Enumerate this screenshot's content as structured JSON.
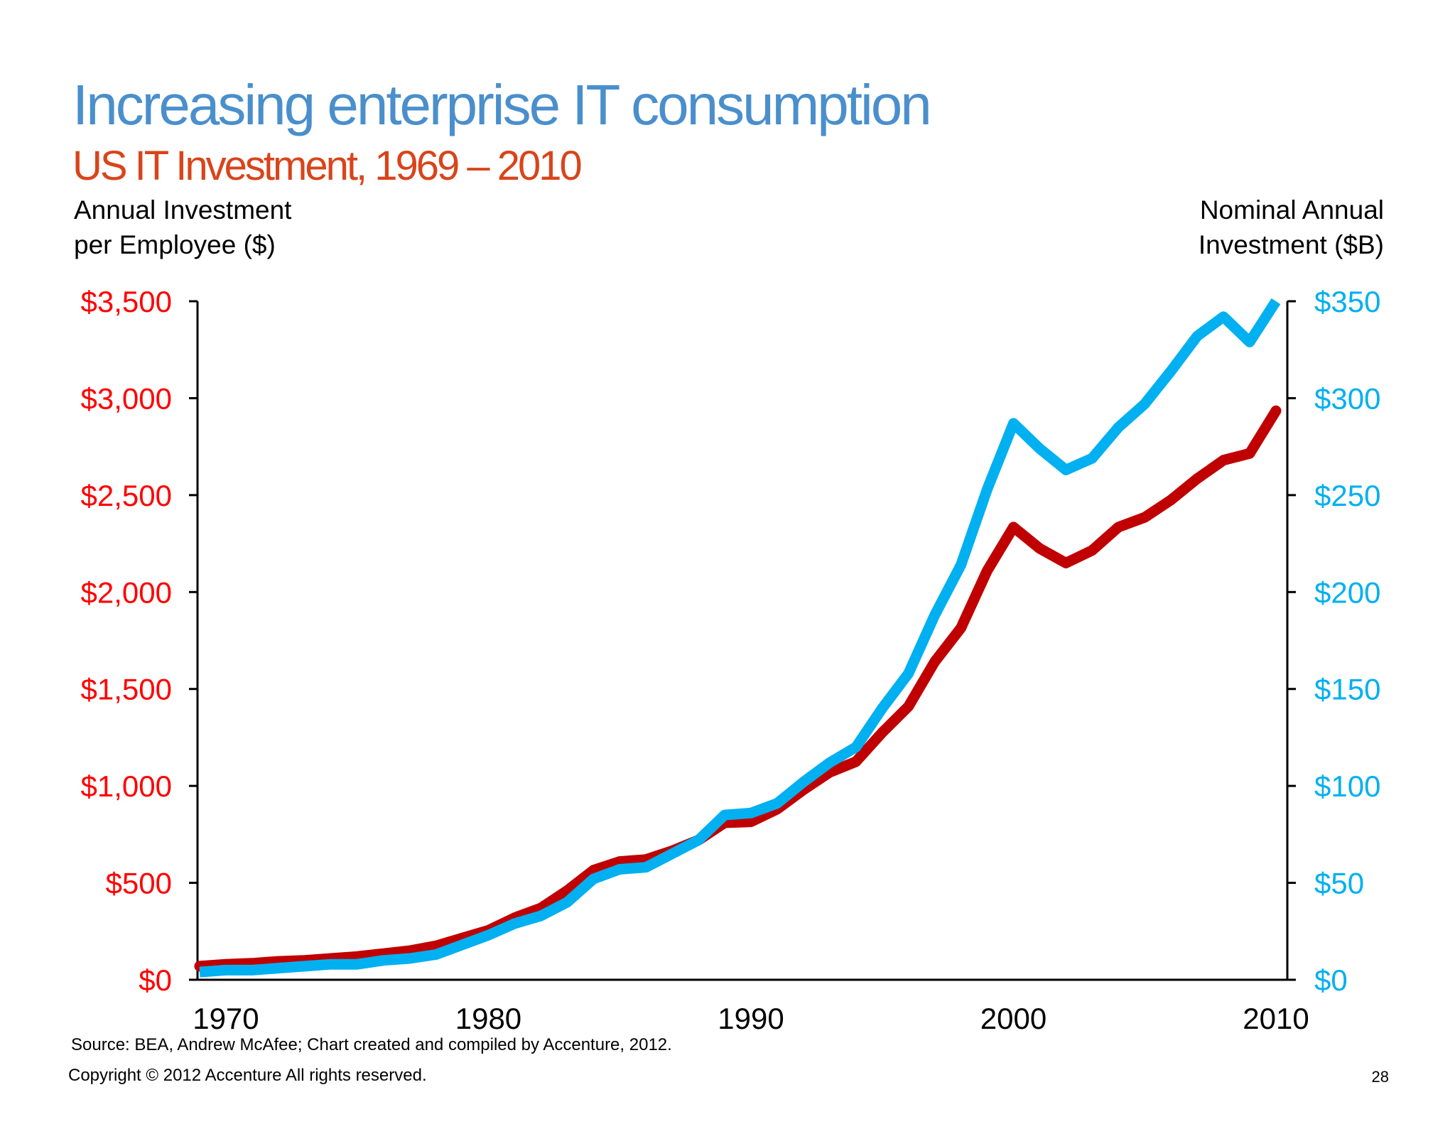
{
  "title": "Increasing enterprise IT consumption",
  "subtitle": "US IT Investment, 1969 – 2010",
  "source": "Source: BEA, Andrew McAfee; Chart created and compiled by Accenture, 2012.",
  "copyright": "Copyright © 2012 Accenture  All rights reserved.",
  "page_number": "28",
  "colors": {
    "title": "#4A8FCC",
    "subtitle": "#D9441A",
    "red_series": "#C00000",
    "blue_series": "#00B0F0",
    "left_ticks": "#FF0000",
    "right_ticks": "#00B0F0"
  },
  "chart_data": {
    "type": "line",
    "ylabel_left": [
      "Annual Investment",
      "per Employee ($)"
    ],
    "ylabel_right": [
      "Nominal Annual",
      "Investment ($B)"
    ],
    "xlim": [
      1969,
      2010
    ],
    "ylim_left": [
      0,
      3500
    ],
    "ylim_right": [
      0,
      350
    ],
    "x_ticks": [
      "1970",
      "1980",
      "1990",
      "2000",
      "2010"
    ],
    "x_tick_values": [
      1970,
      1980,
      1990,
      2000,
      2010
    ],
    "left_ticks": [
      "$0",
      "$500",
      "$1,000",
      "$1,500",
      "$2,000",
      "$2,500",
      "$3,000",
      "$3,500"
    ],
    "right_ticks": [
      "$0",
      "$50",
      "$100",
      "$150",
      "$200",
      "$250",
      "$300",
      "$350"
    ],
    "grid": false,
    "x": [
      1969,
      1970,
      1971,
      1972,
      1973,
      1974,
      1975,
      1976,
      1977,
      1978,
      1979,
      1980,
      1981,
      1982,
      1983,
      1984,
      1985,
      1986,
      1987,
      1988,
      1989,
      1990,
      1991,
      1992,
      1993,
      1994,
      1995,
      1996,
      1997,
      1998,
      1999,
      2000,
      2001,
      2002,
      2003,
      2004,
      2005,
      2006,
      2007,
      2008,
      2009,
      2010
    ],
    "series": [
      {
        "axis": "left",
        "color": "#C00000",
        "values": [
          70,
          80,
          85,
          95,
          100,
          110,
          120,
          135,
          150,
          175,
          215,
          255,
          320,
          370,
          460,
          565,
          610,
          620,
          665,
          720,
          810,
          815,
          880,
          980,
          1070,
          1125,
          1275,
          1410,
          1640,
          1815,
          2110,
          2335,
          2225,
          2150,
          2215,
          2335,
          2385,
          2475,
          2585,
          2680,
          2715,
          2935
        ]
      },
      {
        "axis": "right",
        "color": "#00B0F0",
        "values": [
          4,
          5,
          5,
          6,
          7,
          8,
          8,
          10,
          11,
          13,
          18,
          23,
          29,
          33,
          40,
          52,
          57,
          58,
          65,
          72,
          85,
          86,
          91,
          102,
          112,
          120,
          140,
          158,
          188,
          214,
          253,
          287,
          274,
          263,
          269,
          285,
          297,
          314,
          332,
          342,
          329,
          350
        ]
      }
    ]
  }
}
